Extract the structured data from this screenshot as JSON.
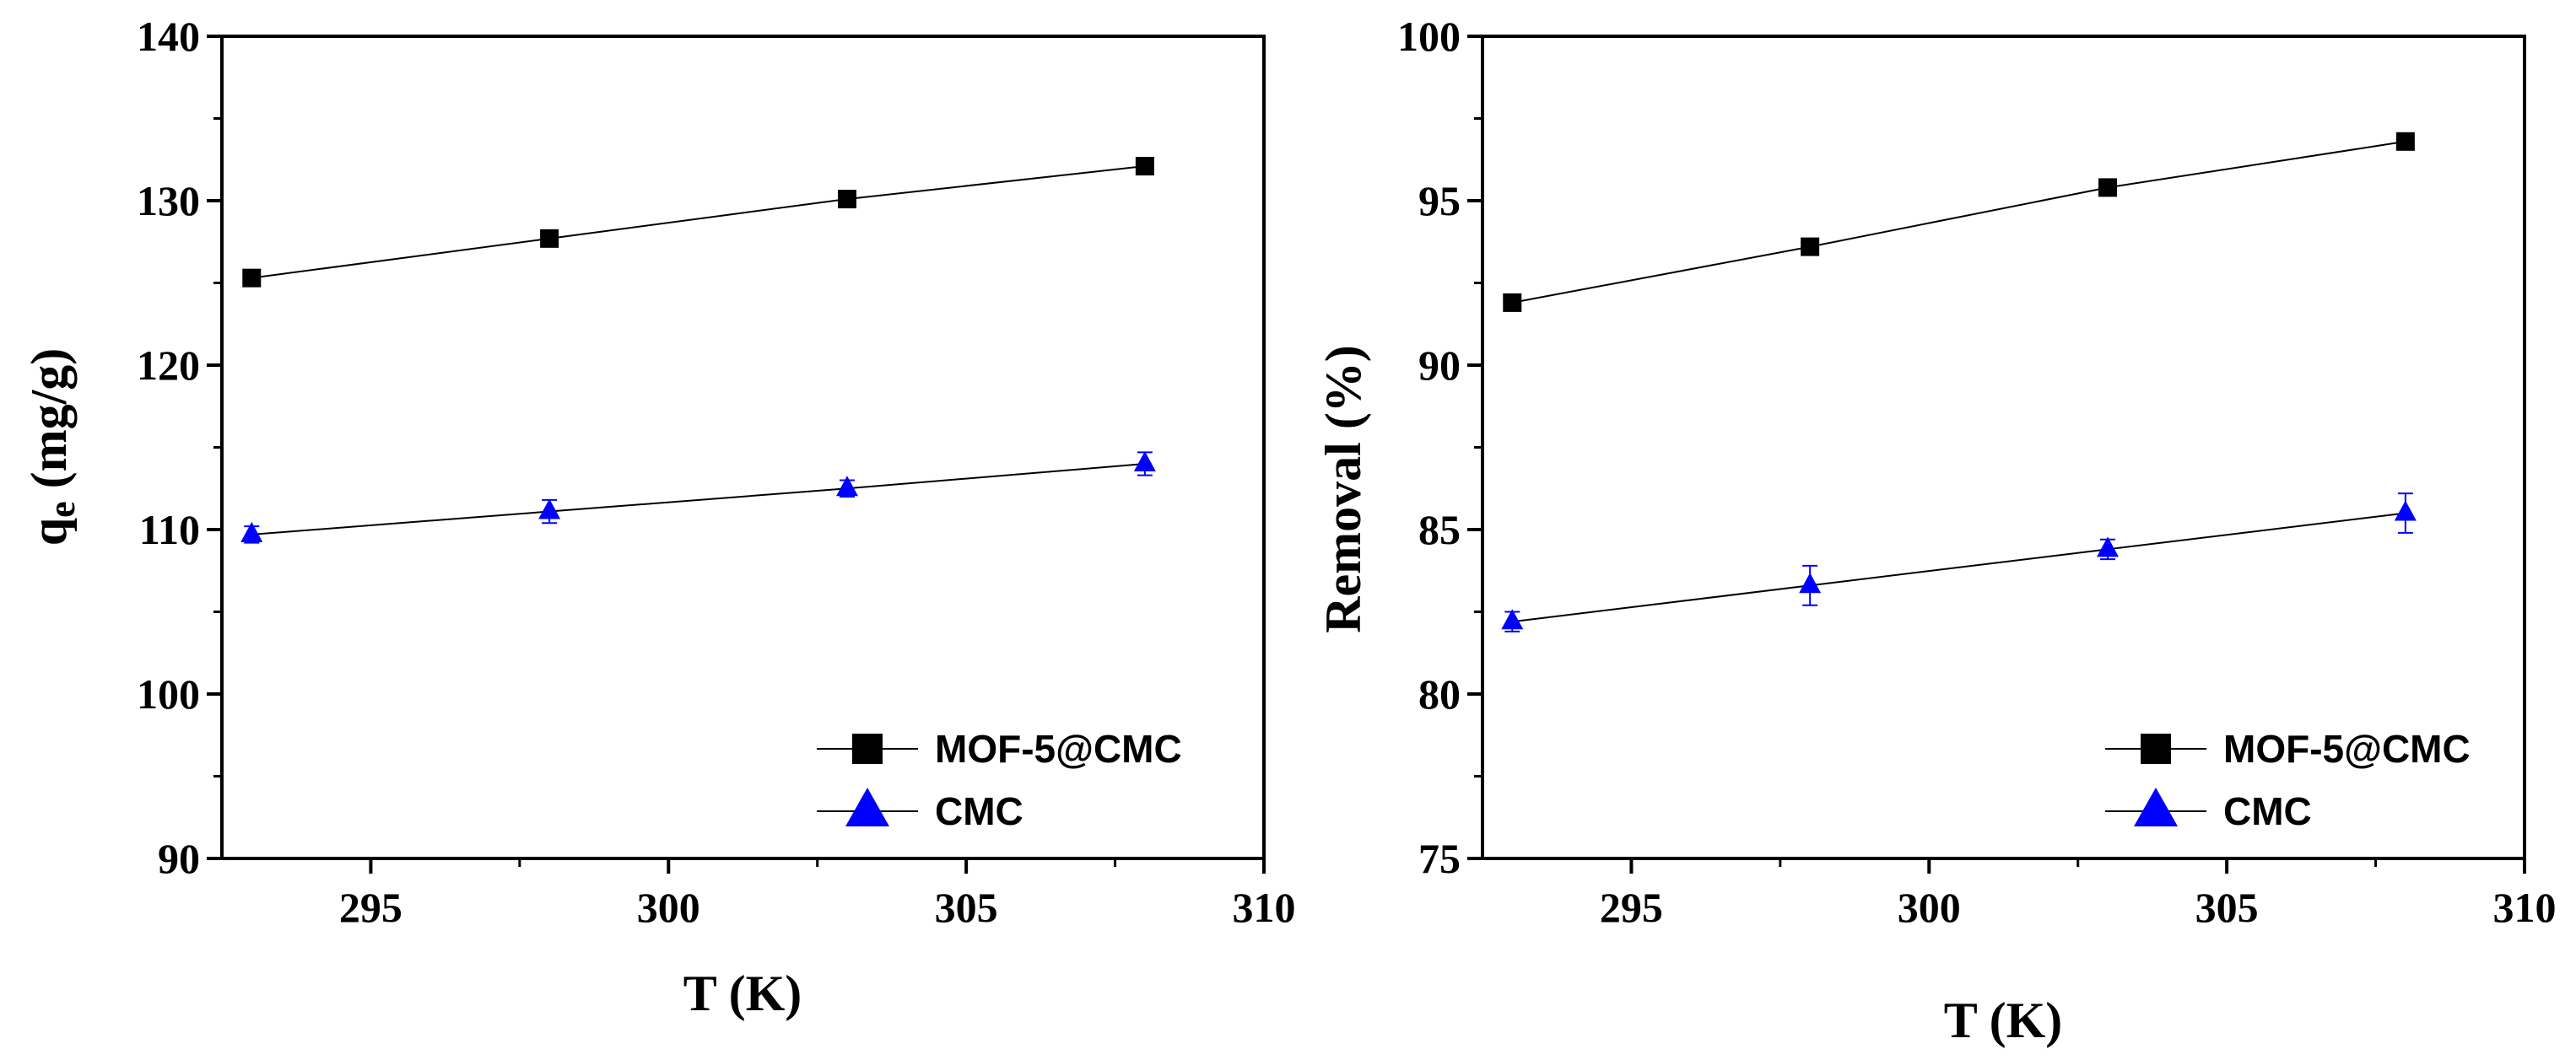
{
  "chart_data": [
    {
      "type": "line",
      "title": "",
      "xlabel": "T (K)",
      "ylabel_main": "q",
      "ylabel_sub": "e",
      "ylabel_rest": " (mg/g)",
      "xlim": [
        292.5,
        310
      ],
      "ylim": [
        90,
        140
      ],
      "xticks": [
        295,
        300,
        305,
        310
      ],
      "yticks": [
        90,
        100,
        110,
        120,
        130,
        140
      ],
      "x": [
        293,
        298,
        303,
        308
      ],
      "legend_position": "bottom-right",
      "series": [
        {
          "name": "MOF-5@CMC",
          "marker": "square",
          "color": "#000000",
          "values": [
            125.3,
            127.7,
            130.1,
            132.1
          ],
          "errors": [
            0.3,
            0.3,
            0.3,
            0.3
          ]
        },
        {
          "name": "CMC",
          "marker": "triangle",
          "color": "#0000ff",
          "values": [
            109.7,
            111.1,
            112.5,
            114.0
          ],
          "errors": [
            0.5,
            0.7,
            0.5,
            0.7
          ]
        }
      ]
    },
    {
      "type": "line",
      "title": "",
      "xlabel": "T (K)",
      "ylabel": "Removal (%)",
      "xlim": [
        292.5,
        310
      ],
      "ylim": [
        75,
        100
      ],
      "xticks": [
        295,
        300,
        305,
        310
      ],
      "yticks": [
        75,
        80,
        85,
        90,
        95,
        100
      ],
      "x": [
        293,
        298,
        303,
        308
      ],
      "legend_position": "bottom-right",
      "series": [
        {
          "name": "MOF-5@CMC",
          "marker": "square",
          "color": "#000000",
          "values": [
            91.9,
            93.6,
            95.4,
            96.8
          ],
          "errors": [
            0.2,
            0.2,
            0.2,
            0.2
          ]
        },
        {
          "name": "CMC",
          "marker": "triangle",
          "color": "#0000ff",
          "values": [
            82.2,
            83.3,
            84.4,
            85.5
          ],
          "errors": [
            0.3,
            0.6,
            0.3,
            0.6
          ]
        }
      ]
    }
  ]
}
